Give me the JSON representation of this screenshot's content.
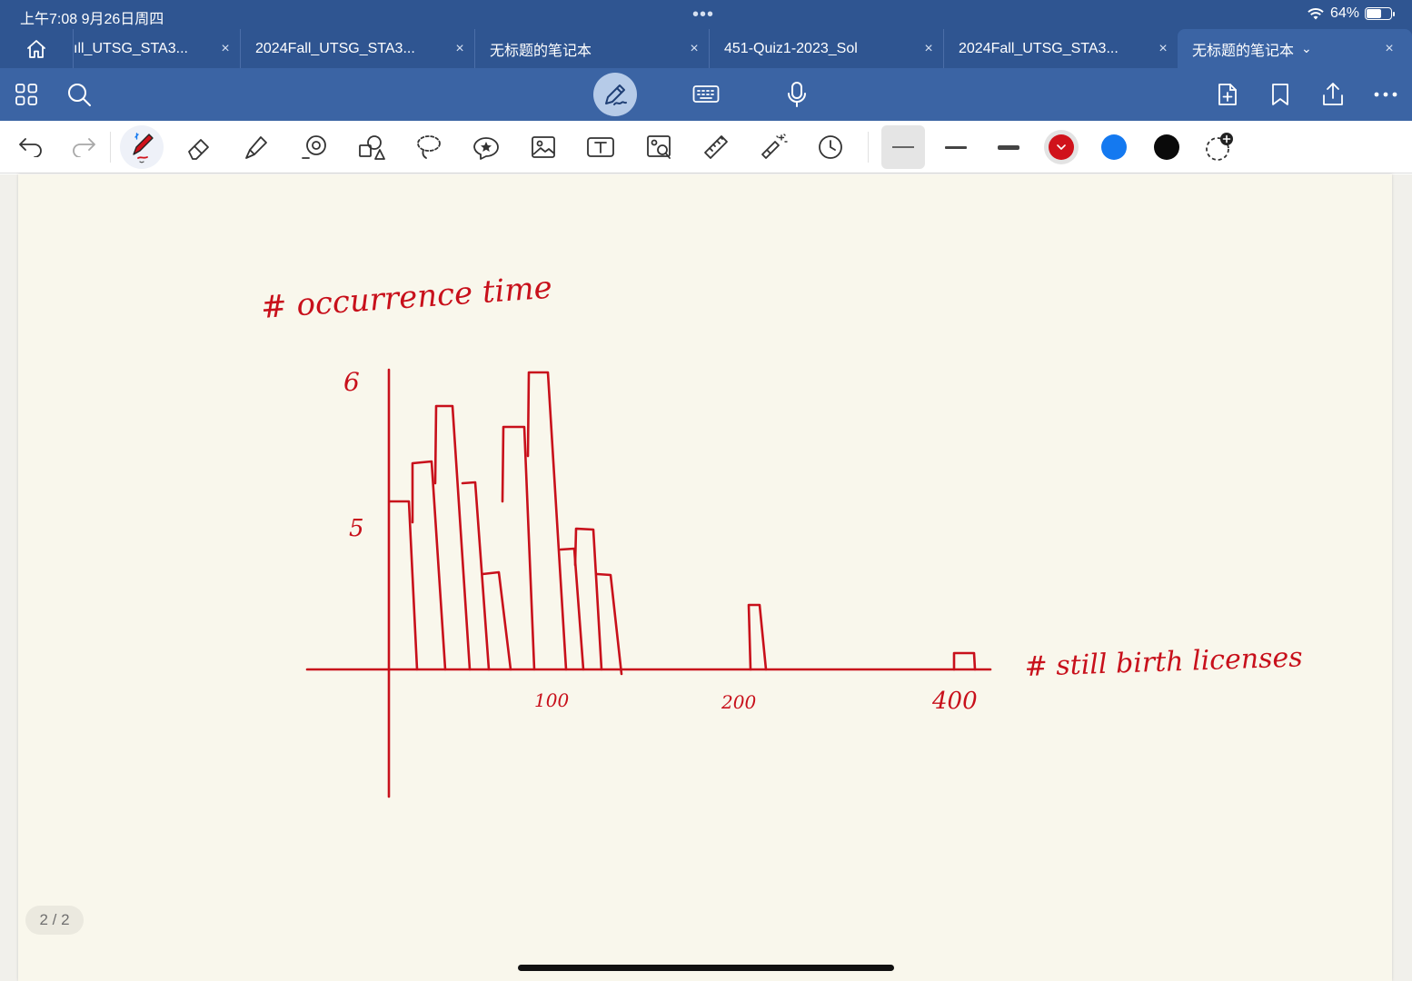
{
  "status_bar": {
    "time_date": "上午7:08   9月26日周四",
    "dots": "•••",
    "battery_percent": "64%",
    "battery_level": 0.64
  },
  "tabs": [
    {
      "label": "ıll_UTSG_STA3...",
      "active": false
    },
    {
      "label": "2024Fall_UTSG_STA3...",
      "active": false
    },
    {
      "label": "无标题的笔记本",
      "active": false
    },
    {
      "label": "451-Quiz1-2023_Sol",
      "active": false
    },
    {
      "label": "2024Fall_UTSG_STA3...",
      "active": false
    },
    {
      "label": "无标题的笔记本",
      "active": true
    }
  ],
  "tab_close_glyph": "×",
  "tab_chevron_glyph": "⌄",
  "main_toolbar": {
    "icons": [
      "grid-icon",
      "search-icon",
      "pen-mode-icon",
      "keyboard-icon",
      "microphone-icon",
      "add-page-icon",
      "bookmark-icon",
      "share-icon",
      "more-icon"
    ]
  },
  "draw_toolbar": {
    "icons": [
      "undo-icon",
      "redo-icon",
      "pen-icon",
      "eraser-icon",
      "highlighter-icon",
      "shape-icon",
      "elements-icon",
      "lasso-icon",
      "sticker-icon",
      "image-icon",
      "text-icon",
      "camera-icon",
      "ruler-icon",
      "laser-pointer-icon",
      "history-icon"
    ],
    "colors": {
      "red": "#d0121b",
      "blue": "#1479f0",
      "black": "#0a0a0a"
    },
    "selected_color": "red"
  },
  "page_counter": "2 / 2",
  "ink": {
    "title": "# occurrence time",
    "y_label_6": "6",
    "y_label_5": "5",
    "x_label_100": "100",
    "x_label_200": "200",
    "x_label_400": "400",
    "x_axis_title": "# still birth  licenses",
    "ink_color": "#c8101b"
  }
}
